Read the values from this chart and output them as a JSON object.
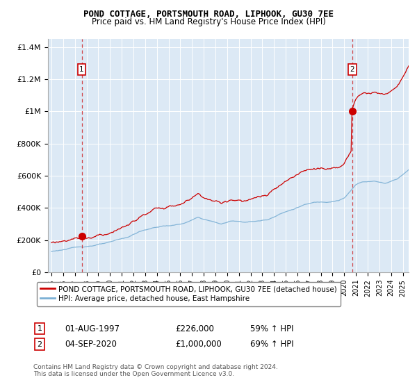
{
  "title": "POND COTTAGE, PORTSMOUTH ROAD, LIPHOOK, GU30 7EE",
  "subtitle": "Price paid vs. HM Land Registry's House Price Index (HPI)",
  "background_color": "#dce9f5",
  "grid_color": "#ffffff",
  "red_line_color": "#cc0000",
  "blue_line_color": "#7aafd4",
  "marker1_date": 1997.583,
  "marker2_date": 2020.67,
  "marker1_price": 226000,
  "marker2_price": 1000000,
  "ylim": [
    0,
    1450000
  ],
  "xlim": [
    1994.7,
    2025.5
  ],
  "yticks": [
    0,
    200000,
    400000,
    600000,
    800000,
    1000000,
    1200000,
    1400000
  ],
  "ytick_labels": [
    "£0",
    "£200K",
    "£400K",
    "£600K",
    "£800K",
    "£1M",
    "£1.2M",
    "£1.4M"
  ],
  "xticks": [
    1995,
    1996,
    1997,
    1998,
    1999,
    2000,
    2001,
    2002,
    2003,
    2004,
    2005,
    2006,
    2007,
    2008,
    2009,
    2010,
    2011,
    2012,
    2013,
    2014,
    2015,
    2016,
    2017,
    2018,
    2019,
    2020,
    2021,
    2022,
    2023,
    2024,
    2025
  ],
  "legend_line1": "POND COTTAGE, PORTSMOUTH ROAD, LIPHOOK, GU30 7EE (detached house)",
  "legend_line2": "HPI: Average price, detached house, East Hampshire",
  "footer": "Contains HM Land Registry data © Crown copyright and database right 2024.\nThis data is licensed under the Open Government Licence v3.0."
}
